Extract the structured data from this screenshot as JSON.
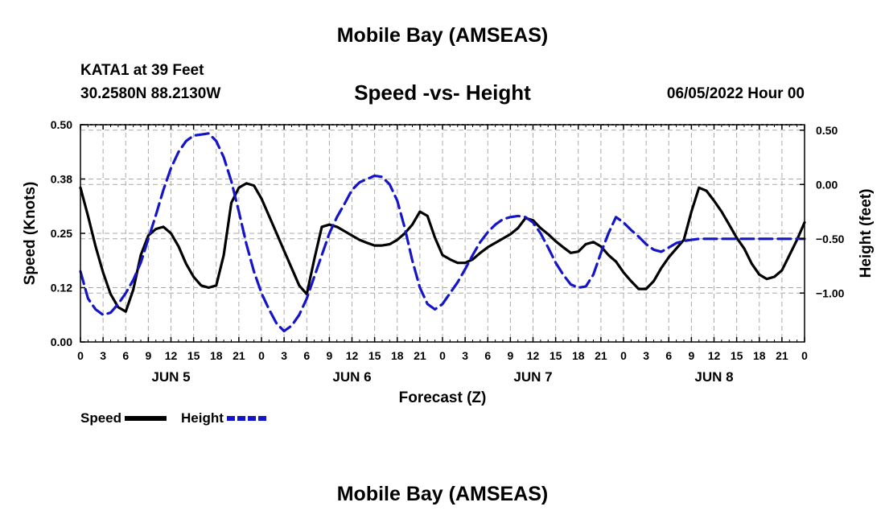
{
  "header": {
    "title": "Mobile Bay (AMSEAS)",
    "station_name": "KATA1 at 39 Feet",
    "station_coords": "30.2580N  88.2130W",
    "chart_title": "Speed -vs- Height",
    "run_date": "06/05/2022 Hour 00"
  },
  "footer": {
    "title": "Mobile Bay (AMSEAS)"
  },
  "legend": {
    "speed_label": "Speed",
    "height_label": "Height"
  },
  "colors": {
    "speed": "#000000",
    "height": "#1515c8",
    "grid": "#aaaaaa"
  },
  "chart_data": {
    "type": "line",
    "title": "Speed -vs- Height",
    "xlabel": "Forecast (Z)",
    "ylabel": "Speed (Knots)",
    "y2label": "Height (feet)",
    "xlim": [
      0,
      96
    ],
    "ylim": [
      0,
      0.5
    ],
    "y2lim": [
      -1.45,
      0.55
    ],
    "grid": true,
    "legend_position": "bottom-left",
    "x_ticks": [
      0,
      3,
      6,
      9,
      12,
      15,
      18,
      21,
      24,
      27,
      30,
      33,
      36,
      39,
      42,
      45,
      48,
      51,
      54,
      57,
      60,
      63,
      66,
      69,
      72,
      75,
      78,
      81,
      84,
      87,
      90,
      93,
      96
    ],
    "x_tick_labels": [
      "0",
      "3",
      "6",
      "9",
      "12",
      "15",
      "18",
      "21",
      "0",
      "3",
      "6",
      "9",
      "12",
      "15",
      "18",
      "21",
      "0",
      "3",
      "6",
      "9",
      "12",
      "15",
      "18",
      "21",
      "0",
      "3",
      "6",
      "9",
      "12",
      "15",
      "18",
      "21",
      "0"
    ],
    "day_labels": [
      {
        "x": 12,
        "label": "JUN 5"
      },
      {
        "x": 36,
        "label": "JUN 6"
      },
      {
        "x": 60,
        "label": "JUN 7"
      },
      {
        "x": 84,
        "label": "JUN 8"
      }
    ],
    "y_ticks": [
      0.0,
      0.125,
      0.25,
      0.375,
      0.5
    ],
    "y_tick_labels": [
      "0.00",
      "0.12",
      "0.25",
      "0.38",
      "0.50"
    ],
    "y2_ticks": [
      0.5,
      0.0,
      -0.5,
      -1.0
    ],
    "y2_tick_labels": [
      "0.50",
      "0.00",
      "−0.50",
      "−1.00"
    ],
    "series": [
      {
        "name": "Speed",
        "axis": "left",
        "style": "solid",
        "x": [
          0,
          1,
          2,
          3,
          4,
          5,
          6,
          7,
          8,
          9,
          10,
          11,
          12,
          13,
          14,
          15,
          16,
          17,
          18,
          19,
          20,
          21,
          22,
          23,
          24,
          25,
          26,
          27,
          28,
          29,
          30,
          31,
          32,
          33,
          34,
          35,
          36,
          37,
          38,
          39,
          40,
          41,
          42,
          43,
          44,
          45,
          46,
          47,
          48,
          49,
          50,
          51,
          52,
          53,
          54,
          55,
          56,
          57,
          58,
          59,
          60,
          61,
          62,
          63,
          64,
          65,
          66,
          67,
          68,
          69,
          70,
          71,
          72,
          73,
          74,
          75,
          76,
          77,
          78,
          79,
          80,
          81,
          82,
          83,
          84,
          85,
          86,
          87,
          88,
          89,
          90,
          91,
          92,
          93,
          94,
          95,
          96
        ],
        "values": [
          0.355,
          0.29,
          0.22,
          0.16,
          0.11,
          0.08,
          0.07,
          0.12,
          0.2,
          0.245,
          0.26,
          0.265,
          0.25,
          0.22,
          0.18,
          0.15,
          0.13,
          0.125,
          0.13,
          0.2,
          0.32,
          0.355,
          0.365,
          0.36,
          0.33,
          0.29,
          0.25,
          0.21,
          0.17,
          0.13,
          0.11,
          0.19,
          0.265,
          0.27,
          0.265,
          0.255,
          0.245,
          0.235,
          0.228,
          0.222,
          0.222,
          0.225,
          0.235,
          0.25,
          0.27,
          0.3,
          0.29,
          0.24,
          0.2,
          0.19,
          0.182,
          0.182,
          0.19,
          0.205,
          0.218,
          0.228,
          0.238,
          0.248,
          0.262,
          0.285,
          0.28,
          0.262,
          0.248,
          0.232,
          0.218,
          0.205,
          0.208,
          0.225,
          0.23,
          0.22,
          0.2,
          0.185,
          0.16,
          0.14,
          0.122,
          0.122,
          0.14,
          0.17,
          0.195,
          0.215,
          0.235,
          0.3,
          0.355,
          0.348,
          0.325,
          0.3,
          0.27,
          0.24,
          0.215,
          0.18,
          0.155,
          0.145,
          0.15,
          0.165,
          0.2,
          0.235,
          0.275
        ]
      },
      {
        "name": "Height",
        "axis": "right",
        "style": "dashed",
        "x": [
          0,
          1,
          2,
          3,
          4,
          5,
          6,
          7,
          8,
          9,
          10,
          11,
          12,
          13,
          14,
          15,
          16,
          17,
          18,
          19,
          20,
          21,
          22,
          23,
          24,
          25,
          26,
          27,
          28,
          29,
          30,
          31,
          32,
          33,
          34,
          35,
          36,
          37,
          38,
          39,
          40,
          41,
          42,
          43,
          44,
          45,
          46,
          47,
          48,
          49,
          50,
          51,
          52,
          53,
          54,
          55,
          56,
          57,
          58,
          59,
          60,
          61,
          62,
          63,
          64,
          65,
          66,
          67,
          68,
          69,
          70,
          71,
          72,
          73,
          74,
          75,
          76,
          77,
          78,
          79,
          80,
          81,
          82,
          83,
          84,
          85,
          86,
          87,
          88,
          89,
          90,
          91,
          92,
          93,
          94,
          95,
          96
        ],
        "values": [
          -0.8,
          -1.05,
          -1.15,
          -1.2,
          -1.18,
          -1.1,
          -1.0,
          -0.88,
          -0.72,
          -0.5,
          -0.28,
          -0.05,
          0.15,
          0.3,
          0.4,
          0.45,
          0.46,
          0.47,
          0.4,
          0.25,
          0.03,
          -0.25,
          -0.55,
          -0.8,
          -1.0,
          -1.15,
          -1.28,
          -1.35,
          -1.3,
          -1.2,
          -1.05,
          -0.85,
          -0.65,
          -0.45,
          -0.3,
          -0.18,
          -0.05,
          0.02,
          0.05,
          0.08,
          0.07,
          0.0,
          -0.15,
          -0.4,
          -0.7,
          -0.95,
          -1.1,
          -1.15,
          -1.1,
          -1.0,
          -0.9,
          -0.78,
          -0.65,
          -0.53,
          -0.44,
          -0.37,
          -0.32,
          -0.3,
          -0.29,
          -0.3,
          -0.35,
          -0.45,
          -0.58,
          -0.72,
          -0.83,
          -0.92,
          -0.95,
          -0.94,
          -0.83,
          -0.63,
          -0.45,
          -0.3,
          -0.35,
          -0.42,
          -0.48,
          -0.55,
          -0.6,
          -0.62,
          -0.58,
          -0.54,
          -0.52,
          -0.51,
          -0.5,
          -0.5,
          -0.5,
          -0.5,
          -0.5,
          -0.5,
          -0.5,
          -0.5,
          -0.5,
          -0.5,
          -0.5,
          -0.5,
          -0.5,
          -0.5,
          -0.5
        ]
      }
    ]
  }
}
